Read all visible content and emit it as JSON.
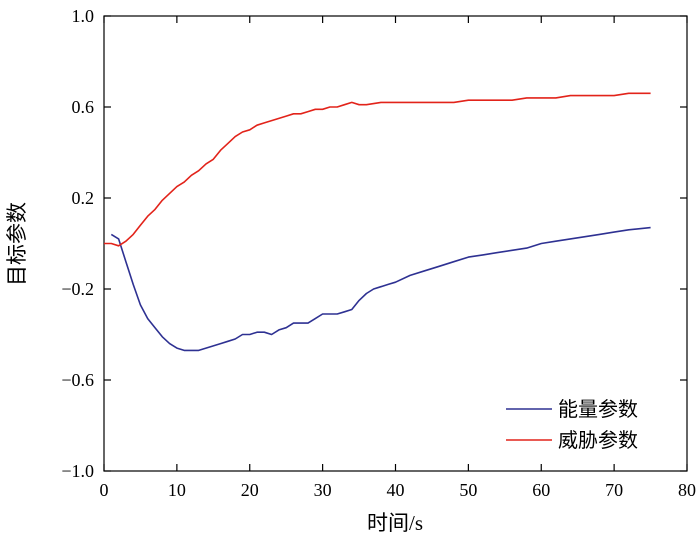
{
  "chart_data": {
    "type": "line",
    "xlabel": "时间/s",
    "ylabel": "目标参数",
    "xlim": [
      0,
      80
    ],
    "ylim": [
      -1.0,
      1.0
    ],
    "xticks": [
      0,
      10,
      20,
      30,
      40,
      50,
      60,
      70,
      80
    ],
    "yticks": [
      -1.0,
      -0.6,
      -0.2,
      0.2,
      0.6,
      1.0
    ],
    "ytick_labels": [
      "−1.0",
      "−0.6",
      "−0.2",
      "0.2",
      "0.6",
      "1.0"
    ],
    "grid": false,
    "legend_position": "bottom-right",
    "series": [
      {
        "name": "能量参数",
        "color": "#2e3192",
        "x": [
          1,
          2,
          3,
          4,
          5,
          6,
          7,
          8,
          9,
          10,
          11,
          12,
          13,
          14,
          15,
          16,
          17,
          18,
          19,
          20,
          21,
          22,
          23,
          24,
          25,
          26,
          27,
          28,
          29,
          30,
          31,
          32,
          33,
          34,
          35,
          36,
          37,
          38,
          39,
          40,
          42,
          44,
          46,
          48,
          50,
          52,
          54,
          56,
          58,
          60,
          62,
          64,
          66,
          68,
          70,
          72,
          75
        ],
        "y": [
          0.04,
          0.02,
          -0.08,
          -0.18,
          -0.27,
          -0.33,
          -0.37,
          -0.41,
          -0.44,
          -0.46,
          -0.47,
          -0.47,
          -0.47,
          -0.46,
          -0.45,
          -0.44,
          -0.43,
          -0.42,
          -0.4,
          -0.4,
          -0.39,
          -0.39,
          -0.4,
          -0.38,
          -0.37,
          -0.35,
          -0.35,
          -0.35,
          -0.33,
          -0.31,
          -0.31,
          -0.31,
          -0.3,
          -0.29,
          -0.25,
          -0.22,
          -0.2,
          -0.19,
          -0.18,
          -0.17,
          -0.14,
          -0.12,
          -0.1,
          -0.08,
          -0.06,
          -0.05,
          -0.04,
          -0.03,
          -0.02,
          0.0,
          0.01,
          0.02,
          0.03,
          0.04,
          0.05,
          0.06,
          0.07
        ]
      },
      {
        "name": "威胁参数",
        "color": "#e2231a",
        "x": [
          0,
          1,
          2,
          3,
          4,
          5,
          6,
          7,
          8,
          9,
          10,
          11,
          12,
          13,
          14,
          15,
          16,
          17,
          18,
          19,
          20,
          21,
          22,
          23,
          24,
          25,
          26,
          27,
          28,
          29,
          30,
          31,
          32,
          33,
          34,
          35,
          36,
          38,
          40,
          42,
          44,
          46,
          48,
          50,
          52,
          54,
          56,
          58,
          60,
          62,
          64,
          66,
          68,
          70,
          72,
          75
        ],
        "y": [
          0.0,
          0.0,
          -0.01,
          0.01,
          0.04,
          0.08,
          0.12,
          0.15,
          0.19,
          0.22,
          0.25,
          0.27,
          0.3,
          0.32,
          0.35,
          0.37,
          0.41,
          0.44,
          0.47,
          0.49,
          0.5,
          0.52,
          0.53,
          0.54,
          0.55,
          0.56,
          0.57,
          0.57,
          0.58,
          0.59,
          0.59,
          0.6,
          0.6,
          0.61,
          0.62,
          0.61,
          0.61,
          0.62,
          0.62,
          0.62,
          0.62,
          0.62,
          0.62,
          0.63,
          0.63,
          0.63,
          0.63,
          0.64,
          0.64,
          0.64,
          0.65,
          0.65,
          0.65,
          0.65,
          0.66,
          0.66
        ]
      }
    ]
  }
}
